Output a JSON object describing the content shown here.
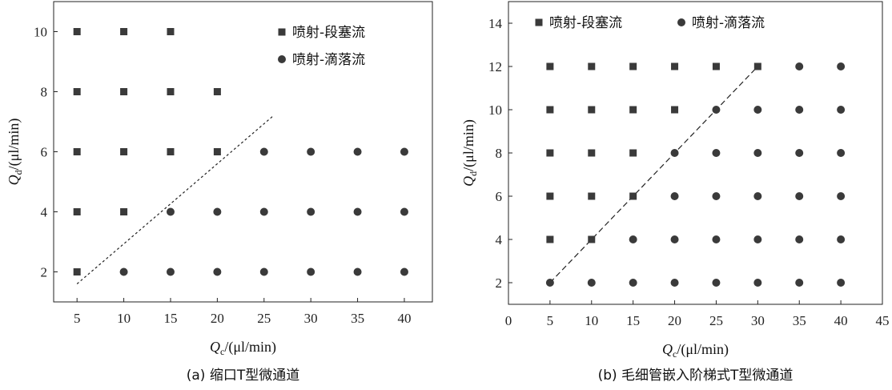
{
  "chart_data": [
    {
      "type": "scatter",
      "caption": "(a) 缩口T型微通道",
      "xlabel": {
        "main": "Q",
        "sub": "c",
        "unit": "/(μl/min)"
      },
      "ylabel": {
        "main": "Q",
        "sub": "d",
        "unit": "/(μl/min)"
      },
      "xlim": [
        2.5,
        43
      ],
      "ylim": [
        1,
        11
      ],
      "xticks": [
        5,
        10,
        15,
        20,
        25,
        30,
        35,
        40
      ],
      "yticks": [
        2,
        4,
        6,
        8,
        10
      ],
      "legend_position": "top-right",
      "grid": false,
      "series": [
        {
          "name": "喷射-段塞流",
          "marker": "square",
          "points": [
            [
              5,
              10
            ],
            [
              10,
              10
            ],
            [
              15,
              10
            ],
            [
              5,
              8
            ],
            [
              10,
              8
            ],
            [
              15,
              8
            ],
            [
              20,
              8
            ],
            [
              5,
              6
            ],
            [
              10,
              6
            ],
            [
              15,
              6
            ],
            [
              20,
              6
            ],
            [
              5,
              4
            ],
            [
              10,
              4
            ],
            [
              5,
              2
            ]
          ]
        },
        {
          "name": "喷射-滴落流",
          "marker": "circle",
          "points": [
            [
              25,
              6
            ],
            [
              30,
              6
            ],
            [
              35,
              6
            ],
            [
              40,
              6
            ],
            [
              15,
              4
            ],
            [
              20,
              4
            ],
            [
              25,
              4
            ],
            [
              30,
              4
            ],
            [
              35,
              4
            ],
            [
              40,
              4
            ],
            [
              10,
              2
            ],
            [
              15,
              2
            ],
            [
              20,
              2
            ],
            [
              25,
              2
            ],
            [
              30,
              2
            ],
            [
              35,
              2
            ],
            [
              40,
              2
            ]
          ]
        }
      ],
      "boundary_line": {
        "style": "dotted",
        "from": [
          5,
          1.6
        ],
        "to": [
          26,
          7.2
        ]
      }
    },
    {
      "type": "scatter",
      "caption": "(b) 毛细管嵌入阶梯式T型微通道",
      "xlabel": {
        "main": "Q",
        "sub": "c",
        "unit": "/(μl/min)"
      },
      "ylabel": {
        "main": "Q",
        "sub": "d",
        "unit": "/(μl/min)"
      },
      "xlim": [
        0,
        45
      ],
      "ylim": [
        1,
        15
      ],
      "xticks": [
        0,
        5,
        10,
        15,
        20,
        25,
        30,
        35,
        40,
        45
      ],
      "yticks": [
        2,
        4,
        6,
        8,
        10,
        12,
        14
      ],
      "legend_position": "top",
      "grid": false,
      "series": [
        {
          "name": "喷射-段塞流",
          "marker": "square",
          "points": [
            [
              5,
              12
            ],
            [
              10,
              12
            ],
            [
              15,
              12
            ],
            [
              20,
              12
            ],
            [
              25,
              12
            ],
            [
              30,
              12
            ],
            [
              5,
              10
            ],
            [
              10,
              10
            ],
            [
              15,
              10
            ],
            [
              20,
              10
            ],
            [
              5,
              8
            ],
            [
              10,
              8
            ],
            [
              15,
              8
            ],
            [
              5,
              6
            ],
            [
              10,
              6
            ],
            [
              15,
              6
            ],
            [
              5,
              4
            ],
            [
              10,
              4
            ]
          ]
        },
        {
          "name": "喷射-滴落流",
          "marker": "circle",
          "points": [
            [
              35,
              12
            ],
            [
              40,
              12
            ],
            [
              25,
              10
            ],
            [
              30,
              10
            ],
            [
              35,
              10
            ],
            [
              40,
              10
            ],
            [
              20,
              8
            ],
            [
              25,
              8
            ],
            [
              30,
              8
            ],
            [
              35,
              8
            ],
            [
              40,
              8
            ],
            [
              20,
              6
            ],
            [
              25,
              6
            ],
            [
              30,
              6
            ],
            [
              35,
              6
            ],
            [
              40,
              6
            ],
            [
              15,
              4
            ],
            [
              20,
              4
            ],
            [
              25,
              4
            ],
            [
              30,
              4
            ],
            [
              35,
              4
            ],
            [
              40,
              4
            ],
            [
              5,
              2
            ],
            [
              10,
              2
            ],
            [
              15,
              2
            ],
            [
              20,
              2
            ],
            [
              25,
              2
            ],
            [
              30,
              2
            ],
            [
              35,
              2
            ],
            [
              40,
              2
            ]
          ]
        }
      ],
      "boundary_line": {
        "style": "dashed",
        "from": [
          5,
          2
        ],
        "to": [
          30,
          12
        ]
      }
    }
  ]
}
